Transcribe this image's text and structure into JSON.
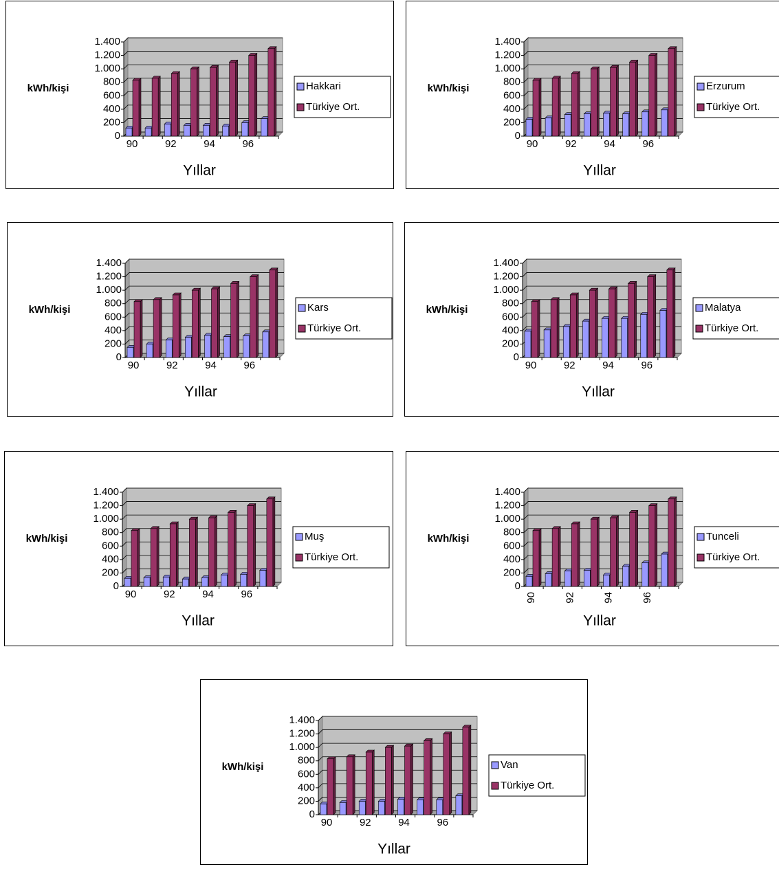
{
  "chart_data": [
    {
      "type": "bar",
      "y_label": "kWh/kişi",
      "x_label": "Yıllar",
      "categories": [
        "90",
        null,
        "92",
        null,
        "94",
        null,
        "96",
        null
      ],
      "series": [
        {
          "name": "Hakkari",
          "color": "#9999ff",
          "values": [
            120,
            120,
            180,
            160,
            160,
            150,
            200,
            260
          ]
        },
        {
          "name": "Türkiye Ort.",
          "color": "#993366",
          "values": [
            830,
            860,
            930,
            1000,
            1020,
            1100,
            1200,
            1300
          ]
        }
      ],
      "ylim": [
        0,
        1400
      ],
      "yticks": [
        0,
        200,
        400,
        600,
        800,
        {
          "value": 1000,
          "label": "1.000"
        },
        {
          "value": 1200,
          "label": "1.200"
        },
        {
          "value": 1400,
          "label": "1.400"
        }
      ],
      "grid": true
    },
    {
      "type": "bar",
      "y_label": "kWh/kişi",
      "x_label": "Yıllar",
      "categories": [
        "90",
        null,
        "92",
        null,
        "94",
        null,
        "96",
        null
      ],
      "series": [
        {
          "name": "Erzurum",
          "color": "#9999ff",
          "values": [
            250,
            270,
            320,
            330,
            340,
            330,
            360,
            390
          ]
        },
        {
          "name": "Türkiye Ort.",
          "color": "#993366",
          "values": [
            830,
            860,
            930,
            1000,
            1020,
            1100,
            1200,
            1300
          ]
        }
      ],
      "ylim": [
        0,
        1400
      ],
      "yticks": [
        0,
        200,
        400,
        600,
        800,
        {
          "value": 1000,
          "label": "1.000"
        },
        {
          "value": 1200,
          "label": "1.200"
        },
        {
          "value": 1400,
          "label": "1.400"
        }
      ],
      "grid": true
    },
    {
      "type": "bar",
      "y_label": "kWh/kişi",
      "x_label": "Yıllar",
      "categories": [
        "90",
        null,
        "92",
        null,
        "94",
        null,
        "96",
        null
      ],
      "series": [
        {
          "name": "Kars",
          "color": "#9999ff",
          "values": [
            150,
            200,
            260,
            300,
            330,
            310,
            320,
            380
          ]
        },
        {
          "name": "Türkiye Ort.",
          "color": "#993366",
          "values": [
            830,
            860,
            930,
            1000,
            1020,
            1100,
            1200,
            1300
          ]
        }
      ],
      "ylim": [
        0,
        1400
      ],
      "yticks": [
        0,
        200,
        400,
        600,
        800,
        {
          "value": 1000,
          "label": "1.000"
        },
        {
          "value": 1200,
          "label": "1.200"
        },
        {
          "value": 1400,
          "label": "1.400"
        }
      ],
      "grid": true
    },
    {
      "type": "bar",
      "y_label": "kWh/kişi",
      "x_label": "Yıllar",
      "categories": [
        "90",
        null,
        "92",
        null,
        "94",
        null,
        "96",
        null
      ],
      "series": [
        {
          "name": "Malatya",
          "color": "#9999ff",
          "values": [
            390,
            410,
            460,
            540,
            580,
            580,
            640,
            700
          ]
        },
        {
          "name": "Türkiye Ort.",
          "color": "#993366",
          "values": [
            830,
            860,
            930,
            1000,
            1020,
            1100,
            1200,
            1300
          ]
        }
      ],
      "ylim": [
        0,
        1400
      ],
      "yticks": [
        0,
        200,
        400,
        600,
        800,
        {
          "value": 1000,
          "label": "1.000"
        },
        {
          "value": 1200,
          "label": "1.200"
        },
        {
          "value": 1400,
          "label": "1.400"
        }
      ],
      "grid": true
    },
    {
      "type": "bar",
      "y_label": "kWh/kişi",
      "x_label": "Yıllar",
      "categories": [
        "90",
        null,
        "92",
        null,
        "94",
        null,
        "96",
        null
      ],
      "series": [
        {
          "name": "Muş",
          "color": "#9999ff",
          "values": [
            120,
            130,
            140,
            110,
            130,
            170,
            180,
            240
          ]
        },
        {
          "name": "Türkiye Ort.",
          "color": "#993366",
          "values": [
            830,
            860,
            930,
            1000,
            1020,
            1100,
            1200,
            1300
          ]
        }
      ],
      "ylim": [
        0,
        1400
      ],
      "yticks": [
        0,
        200,
        400,
        600,
        800,
        {
          "value": 1000,
          "label": "1.000"
        },
        {
          "value": 1200,
          "label": "1.200"
        },
        {
          "value": 1400,
          "label": "1.400"
        }
      ],
      "grid": true
    },
    {
      "type": "bar",
      "y_label": "kWh/kişi",
      "x_label": "Yıllar",
      "x_tick_rotation": -90,
      "categories": [
        "90",
        null,
        "92",
        null,
        "94",
        null,
        "96",
        null
      ],
      "series": [
        {
          "name": "Tunceli",
          "color": "#9999ff",
          "values": [
            150,
            190,
            230,
            240,
            170,
            300,
            350,
            480
          ]
        },
        {
          "name": "Türkiye Ort.",
          "color": "#993366",
          "values": [
            830,
            860,
            930,
            1000,
            1020,
            1100,
            1200,
            1300
          ]
        }
      ],
      "ylim": [
        0,
        1400
      ],
      "yticks": [
        0,
        200,
        400,
        600,
        800,
        {
          "value": 1000,
          "label": "1.000"
        },
        {
          "value": 1200,
          "label": "1.200"
        },
        {
          "value": 1400,
          "label": "1.400"
        }
      ],
      "grid": true
    },
    {
      "type": "bar",
      "y_label": "kWh/kişi",
      "x_label": "Yıllar",
      "categories": [
        "90",
        null,
        "92",
        null,
        "94",
        null,
        "96",
        null
      ],
      "series": [
        {
          "name": "Van",
          "color": "#9999ff",
          "values": [
            160,
            180,
            200,
            200,
            230,
            220,
            220,
            280
          ]
        },
        {
          "name": "Türkiye Ort.",
          "color": "#993366",
          "values": [
            830,
            860,
            930,
            1000,
            1020,
            1100,
            1200,
            1300
          ]
        }
      ],
      "ylim": [
        0,
        1400
      ],
      "yticks": [
        0,
        200,
        400,
        600,
        800,
        {
          "value": 1000,
          "label": "1.000"
        },
        {
          "value": 1200,
          "label": "1.200"
        },
        {
          "value": 1400,
          "label": "1.400"
        }
      ],
      "grid": true
    }
  ]
}
